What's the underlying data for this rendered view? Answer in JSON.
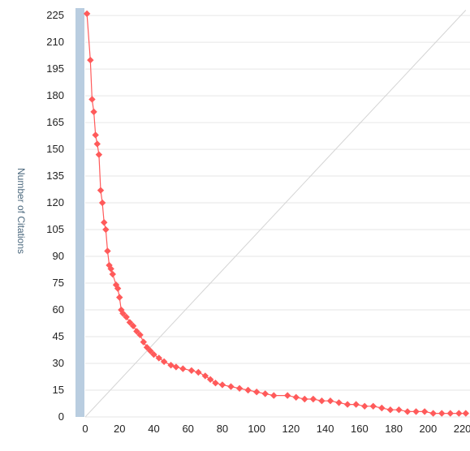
{
  "chart_data": {
    "type": "line",
    "title": "",
    "xlabel": "",
    "ylabel": "Number of Citations",
    "xlim": [
      0,
      222
    ],
    "ylim": [
      0,
      228
    ],
    "x_ticks": [
      "0",
      "20",
      "40",
      "60",
      "80",
      "100",
      "120",
      "140",
      "160",
      "180",
      "200",
      "220"
    ],
    "y_ticks": [
      "0",
      "15",
      "30",
      "45",
      "60",
      "75",
      "90",
      "105",
      "120",
      "135",
      "150",
      "165",
      "180",
      "195",
      "210",
      "225"
    ],
    "grid": true,
    "legend": "none",
    "colors": {
      "series": "#ff5a5a",
      "reference_line": "#d4d4d4",
      "axis_bar": "#b9cde0",
      "grid": "#e6e6e6",
      "tick_text": "#222222",
      "ylabel_text": "#4d6a7f"
    },
    "series": [
      {
        "points": [
          [
            1,
            226
          ],
          [
            3,
            200
          ],
          [
            4,
            178
          ],
          [
            5,
            171
          ],
          [
            6,
            158
          ],
          [
            7,
            153
          ],
          [
            8,
            147
          ],
          [
            9,
            127
          ],
          [
            10,
            120
          ],
          [
            11,
            109
          ],
          [
            12,
            105
          ],
          [
            13,
            93
          ],
          [
            14,
            85
          ],
          [
            15,
            83
          ],
          [
            16,
            80
          ],
          [
            18,
            74
          ],
          [
            19,
            72
          ],
          [
            20,
            67
          ],
          [
            21,
            60
          ],
          [
            22,
            58
          ],
          [
            24,
            56
          ],
          [
            26,
            53
          ],
          [
            28,
            51
          ],
          [
            30,
            48
          ],
          [
            32,
            46
          ],
          [
            34,
            42
          ],
          [
            36,
            39
          ],
          [
            38,
            37
          ],
          [
            40,
            35
          ],
          [
            43,
            33
          ],
          [
            46,
            31
          ],
          [
            50,
            29
          ],
          [
            53,
            28
          ],
          [
            57,
            27
          ],
          [
            62,
            26
          ],
          [
            66,
            25
          ],
          [
            70,
            23
          ],
          [
            73,
            21
          ],
          [
            76,
            19
          ],
          [
            80,
            18
          ],
          [
            85,
            17
          ],
          [
            90,
            16
          ],
          [
            95,
            15
          ],
          [
            100,
            14
          ],
          [
            105,
            13
          ],
          [
            110,
            12
          ],
          [
            118,
            12
          ],
          [
            123,
            11
          ],
          [
            128,
            10
          ],
          [
            133,
            10
          ],
          [
            138,
            9
          ],
          [
            143,
            9
          ],
          [
            148,
            8
          ],
          [
            153,
            7
          ],
          [
            158,
            7
          ],
          [
            163,
            6
          ],
          [
            168,
            6
          ],
          [
            173,
            5
          ],
          [
            178,
            4
          ],
          [
            183,
            4
          ],
          [
            188,
            3
          ],
          [
            193,
            3
          ],
          [
            198,
            3
          ],
          [
            203,
            2
          ],
          [
            208,
            2
          ],
          [
            213,
            2
          ],
          [
            218,
            2
          ],
          [
            222,
            2
          ]
        ]
      }
    ],
    "reference_line": {
      "from": [
        0,
        0
      ],
      "to": [
        222,
        228
      ]
    }
  }
}
